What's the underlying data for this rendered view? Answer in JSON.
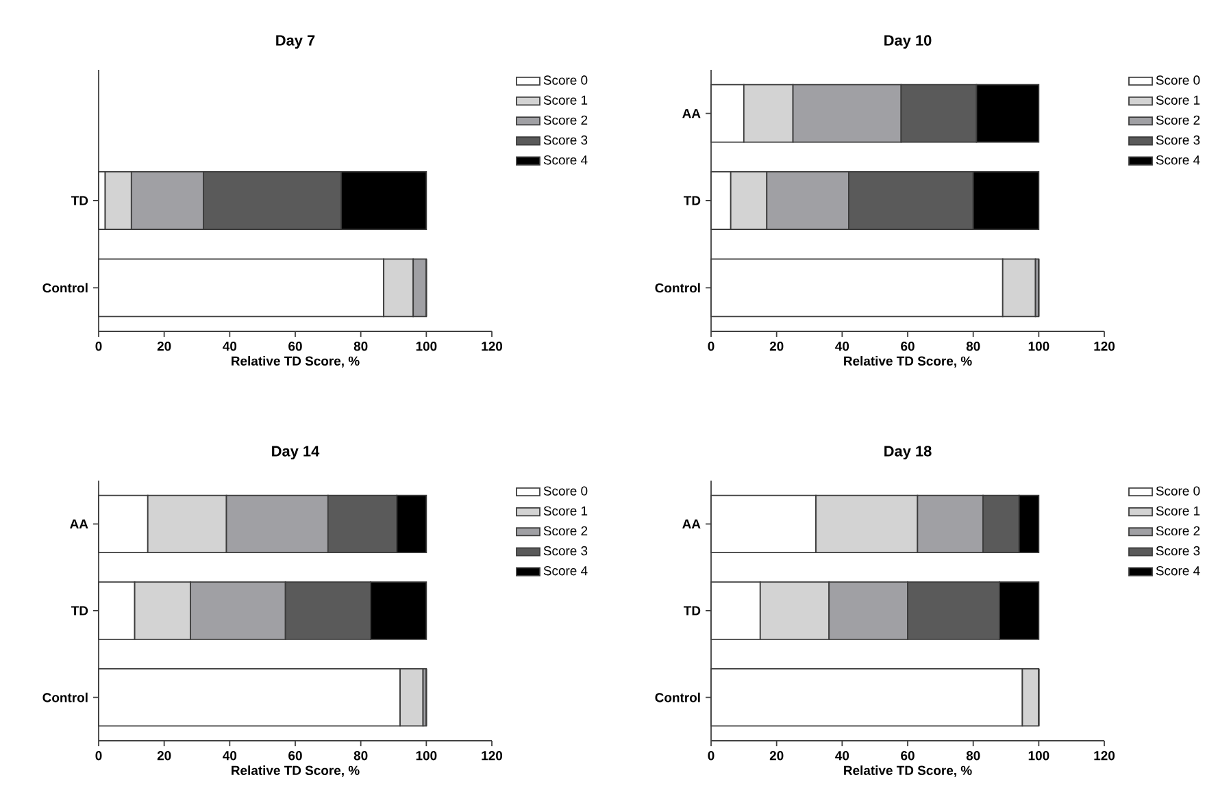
{
  "chart_data": [
    {
      "type": "bar",
      "orientation": "horizontal",
      "stacked": true,
      "title": "Day 7",
      "xlabel": "Relative TD Score, %",
      "categories": [
        null,
        "TD",
        "Control"
      ],
      "xlim": [
        0,
        120
      ],
      "xticks": [
        0,
        20,
        40,
        60,
        80,
        100,
        120
      ],
      "legend": "right",
      "grid": false,
      "series": [
        {
          "name": "Score 0",
          "color": "#ffffff",
          "values": [
            null,
            2,
            87
          ]
        },
        {
          "name": "Score 1",
          "color": "#d3d3d3",
          "values": [
            null,
            8,
            9
          ]
        },
        {
          "name": "Score 2",
          "color": "#a0a0a4",
          "values": [
            null,
            22,
            4
          ]
        },
        {
          "name": "Score 3",
          "color": "#5a5a5a",
          "values": [
            null,
            42,
            0
          ]
        },
        {
          "name": "Score 4",
          "color": "#000000",
          "values": [
            null,
            26,
            0
          ]
        }
      ]
    },
    {
      "type": "bar",
      "orientation": "horizontal",
      "stacked": true,
      "title": "Day 10",
      "xlabel": "Relative TD Score, %",
      "categories": [
        "AA",
        "TD",
        "Control"
      ],
      "xlim": [
        0,
        120
      ],
      "xticks": [
        0,
        20,
        40,
        60,
        80,
        100,
        120
      ],
      "legend": "right",
      "grid": false,
      "series": [
        {
          "name": "Score 0",
          "color": "#ffffff",
          "values": [
            10,
            6,
            89
          ]
        },
        {
          "name": "Score 1",
          "color": "#d3d3d3",
          "values": [
            15,
            11,
            10
          ]
        },
        {
          "name": "Score 2",
          "color": "#a0a0a4",
          "values": [
            33,
            25,
            1
          ]
        },
        {
          "name": "Score 3",
          "color": "#5a5a5a",
          "values": [
            23,
            38,
            0
          ]
        },
        {
          "name": "Score 4",
          "color": "#000000",
          "values": [
            19,
            20,
            0
          ]
        }
      ]
    },
    {
      "type": "bar",
      "orientation": "horizontal",
      "stacked": true,
      "title": "Day 14",
      "xlabel": "Relative TD Score, %",
      "categories": [
        "AA",
        "TD",
        "Control"
      ],
      "xlim": [
        0,
        120
      ],
      "xticks": [
        0,
        20,
        40,
        60,
        80,
        100,
        120
      ],
      "legend": "right",
      "grid": false,
      "series": [
        {
          "name": "Score 0",
          "color": "#ffffff",
          "values": [
            15,
            11,
            92
          ]
        },
        {
          "name": "Score 1",
          "color": "#d3d3d3",
          "values": [
            24,
            17,
            7
          ]
        },
        {
          "name": "Score 2",
          "color": "#a0a0a4",
          "values": [
            31,
            29,
            1
          ]
        },
        {
          "name": "Score 3",
          "color": "#5a5a5a",
          "values": [
            21,
            26,
            0
          ]
        },
        {
          "name": "Score 4",
          "color": "#000000",
          "values": [
            9,
            17,
            0
          ]
        }
      ]
    },
    {
      "type": "bar",
      "orientation": "horizontal",
      "stacked": true,
      "title": "Day 18",
      "xlabel": "Relative TD Score, %",
      "categories": [
        "AA",
        "TD",
        "Control"
      ],
      "xlim": [
        0,
        120
      ],
      "xticks": [
        0,
        20,
        40,
        60,
        80,
        100,
        120
      ],
      "legend": "right",
      "grid": false,
      "series": [
        {
          "name": "Score 0",
          "color": "#ffffff",
          "values": [
            32,
            15,
            95
          ]
        },
        {
          "name": "Score 1",
          "color": "#d3d3d3",
          "values": [
            31,
            21,
            5
          ]
        },
        {
          "name": "Score 2",
          "color": "#a0a0a4",
          "values": [
            20,
            24,
            0
          ]
        },
        {
          "name": "Score 3",
          "color": "#5a5a5a",
          "values": [
            11,
            28,
            0
          ]
        },
        {
          "name": "Score 4",
          "color": "#000000",
          "values": [
            6,
            12,
            0
          ]
        }
      ]
    }
  ]
}
